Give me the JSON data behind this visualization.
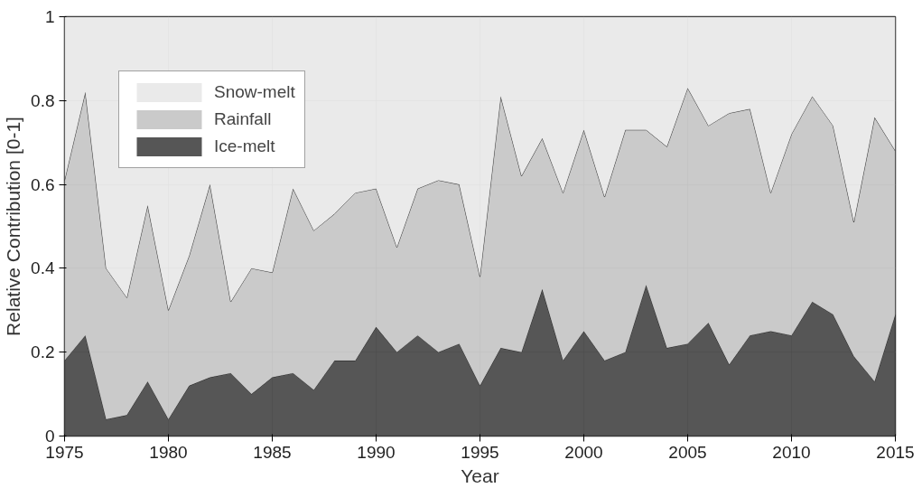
{
  "chart_data": {
    "type": "area",
    "stacked": true,
    "xlabel": "Year",
    "ylabel": "Relative Contribution [0-1]",
    "x": [
      1975,
      1976,
      1977,
      1978,
      1979,
      1980,
      1981,
      1982,
      1983,
      1984,
      1985,
      1986,
      1987,
      1988,
      1989,
      1990,
      1991,
      1992,
      1993,
      1994,
      1995,
      1996,
      1997,
      1998,
      1999,
      2000,
      2001,
      2002,
      2003,
      2004,
      2005,
      2006,
      2007,
      2008,
      2009,
      2010,
      2011,
      2012,
      2013,
      2014,
      2015
    ],
    "series": [
      {
        "name": "Ice-melt",
        "color": "#444444",
        "values": [
          0.18,
          0.24,
          0.04,
          0.05,
          0.13,
          0.04,
          0.12,
          0.14,
          0.15,
          0.1,
          0.14,
          0.15,
          0.11,
          0.18,
          0.18,
          0.26,
          0.2,
          0.24,
          0.2,
          0.22,
          0.12,
          0.21,
          0.2,
          0.35,
          0.18,
          0.25,
          0.18,
          0.2,
          0.36,
          0.21,
          0.22,
          0.27,
          0.17,
          0.24,
          0.25,
          0.24,
          0.32,
          0.29,
          0.19,
          0.13,
          0.29
        ]
      },
      {
        "name": "Rainfall",
        "color": "#c4c4c4",
        "values": [
          0.43,
          0.58,
          0.36,
          0.28,
          0.42,
          0.26,
          0.31,
          0.46,
          0.17,
          0.3,
          0.25,
          0.44,
          0.38,
          0.35,
          0.4,
          0.33,
          0.25,
          0.35,
          0.41,
          0.38,
          0.26,
          0.6,
          0.42,
          0.36,
          0.4,
          0.48,
          0.39,
          0.53,
          0.37,
          0.48,
          0.61,
          0.47,
          0.6,
          0.54,
          0.33,
          0.48,
          0.49,
          0.45,
          0.32,
          0.63,
          0.39
        ]
      },
      {
        "name": "Snow-melt",
        "color": "#e8e8e8",
        "values": [
          0.39,
          0.18,
          0.6,
          0.67,
          0.45,
          0.7,
          0.57,
          0.4,
          0.68,
          0.6,
          0.61,
          0.41,
          0.51,
          0.47,
          0.42,
          0.41,
          0.55,
          0.41,
          0.39,
          0.4,
          0.62,
          0.19,
          0.38,
          0.29,
          0.42,
          0.27,
          0.43,
          0.27,
          0.27,
          0.31,
          0.17,
          0.26,
          0.23,
          0.22,
          0.42,
          0.28,
          0.19,
          0.26,
          0.49,
          0.24,
          0.32
        ]
      }
    ],
    "xlim": [
      1975,
      2015
    ],
    "ylim": [
      0,
      1
    ],
    "xticks": [
      1975,
      1980,
      1985,
      1990,
      1995,
      2000,
      2005,
      2010,
      2015
    ],
    "yticks": [
      0,
      0.2,
      0.4,
      0.6,
      0.8,
      1
    ],
    "grid": true,
    "legend": "top left"
  }
}
